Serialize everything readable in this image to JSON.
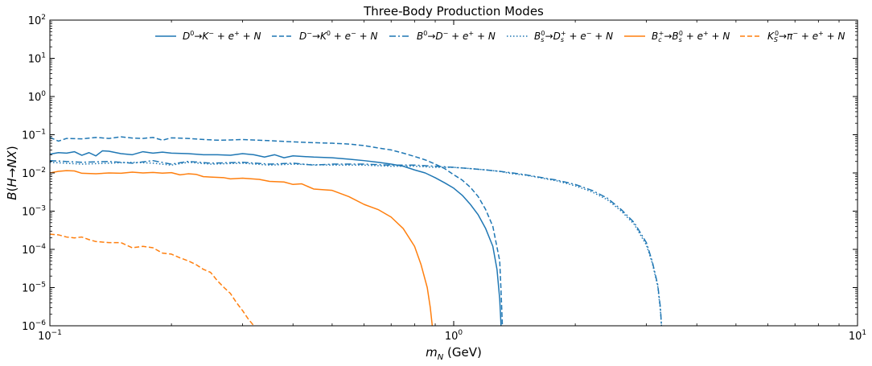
{
  "chart_data": {
    "type": "line",
    "title": "Three-Body Production Modes",
    "xlabel": "m_N (GeV)",
    "ylabel": "B(H→NX)",
    "xscale": "log",
    "yscale": "log",
    "xlim": [
      0.1,
      10
    ],
    "ylim": [
      1e-06,
      100
    ],
    "x_ticks": [
      {
        "value": 0.1,
        "mantissa": "10",
        "exp": "−1"
      },
      {
        "value": 1,
        "mantissa": "10",
        "exp": "0"
      },
      {
        "value": 10,
        "mantissa": "10",
        "exp": "1"
      }
    ],
    "y_ticks": [
      {
        "value": 1e-06,
        "mantissa": "10",
        "exp": "−6"
      },
      {
        "value": 1e-05,
        "mantissa": "10",
        "exp": "−5"
      },
      {
        "value": 0.0001,
        "mantissa": "10",
        "exp": "−4"
      },
      {
        "value": 0.001,
        "mantissa": "10",
        "exp": "−3"
      },
      {
        "value": 0.01,
        "mantissa": "10",
        "exp": "−2"
      },
      {
        "value": 0.1,
        "mantissa": "10",
        "exp": "−1"
      },
      {
        "value": 1,
        "mantissa": "10",
        "exp": "0"
      },
      {
        "value": 10,
        "mantissa": "10",
        "exp": "1"
      },
      {
        "value": 100,
        "mantissa": "10",
        "exp": "2"
      }
    ],
    "grid": false,
    "legend_position": "top-right",
    "series": [
      {
        "name": "D⁰→K⁻ + e⁺ + N",
        "color": "#1f77b4",
        "dash": "solid",
        "points": [
          [
            0.1,
            0.031
          ],
          [
            0.105,
            0.034
          ],
          [
            0.11,
            0.033
          ],
          [
            0.115,
            0.036
          ],
          [
            0.12,
            0.029
          ],
          [
            0.125,
            0.034
          ],
          [
            0.13,
            0.028
          ],
          [
            0.135,
            0.038
          ],
          [
            0.14,
            0.037
          ],
          [
            0.15,
            0.032
          ],
          [
            0.16,
            0.03
          ],
          [
            0.17,
            0.036
          ],
          [
            0.18,
            0.033
          ],
          [
            0.19,
            0.035
          ],
          [
            0.2,
            0.033
          ],
          [
            0.22,
            0.032
          ],
          [
            0.24,
            0.03
          ],
          [
            0.26,
            0.03
          ],
          [
            0.28,
            0.029
          ],
          [
            0.3,
            0.032
          ],
          [
            0.32,
            0.03
          ],
          [
            0.34,
            0.026
          ],
          [
            0.36,
            0.03
          ],
          [
            0.38,
            0.025
          ],
          [
            0.4,
            0.028
          ],
          [
            0.45,
            0.026
          ],
          [
            0.5,
            0.025
          ],
          [
            0.55,
            0.023
          ],
          [
            0.6,
            0.021
          ],
          [
            0.65,
            0.019
          ],
          [
            0.7,
            0.017
          ],
          [
            0.75,
            0.015
          ],
          [
            0.8,
            0.012
          ],
          [
            0.85,
            0.01
          ],
          [
            0.9,
            0.0075
          ],
          [
            0.95,
            0.0055
          ],
          [
            1.0,
            0.004
          ],
          [
            1.05,
            0.0026
          ],
          [
            1.1,
            0.0015
          ],
          [
            1.15,
            0.0008
          ],
          [
            1.2,
            0.00035
          ],
          [
            1.25,
            0.00012
          ],
          [
            1.28,
            3e-05
          ],
          [
            1.3,
            5e-06
          ],
          [
            1.31,
            1e-06
          ]
        ]
      },
      {
        "name": "D⁻→K⁰ + e⁻ + N",
        "color": "#1f77b4",
        "dash": "dashed",
        "points": [
          [
            0.1,
            0.085
          ],
          [
            0.105,
            0.068
          ],
          [
            0.11,
            0.08
          ],
          [
            0.12,
            0.078
          ],
          [
            0.13,
            0.085
          ],
          [
            0.14,
            0.08
          ],
          [
            0.15,
            0.088
          ],
          [
            0.16,
            0.082
          ],
          [
            0.17,
            0.08
          ],
          [
            0.18,
            0.085
          ],
          [
            0.19,
            0.072
          ],
          [
            0.2,
            0.083
          ],
          [
            0.22,
            0.08
          ],
          [
            0.24,
            0.075
          ],
          [
            0.26,
            0.072
          ],
          [
            0.28,
            0.073
          ],
          [
            0.3,
            0.075
          ],
          [
            0.35,
            0.07
          ],
          [
            0.4,
            0.065
          ],
          [
            0.45,
            0.062
          ],
          [
            0.5,
            0.06
          ],
          [
            0.55,
            0.057
          ],
          [
            0.6,
            0.052
          ],
          [
            0.65,
            0.045
          ],
          [
            0.7,
            0.04
          ],
          [
            0.75,
            0.033
          ],
          [
            0.8,
            0.027
          ],
          [
            0.85,
            0.022
          ],
          [
            0.9,
            0.017
          ],
          [
            0.95,
            0.013
          ],
          [
            1.0,
            0.009
          ],
          [
            1.05,
            0.0065
          ],
          [
            1.1,
            0.0042
          ],
          [
            1.15,
            0.0024
          ],
          [
            1.2,
            0.0011
          ],
          [
            1.25,
            0.0004
          ],
          [
            1.3,
            5e-05
          ],
          [
            1.31,
            8e-06
          ],
          [
            1.32,
            1e-06
          ]
        ]
      },
      {
        "name": "B⁰→D⁻ + e⁺ + N",
        "color": "#1f77b4",
        "dash": "dashdot",
        "points": [
          [
            0.1,
            0.021
          ],
          [
            0.12,
            0.019
          ],
          [
            0.14,
            0.02
          ],
          [
            0.16,
            0.018
          ],
          [
            0.18,
            0.021
          ],
          [
            0.2,
            0.017
          ],
          [
            0.22,
            0.02
          ],
          [
            0.25,
            0.018
          ],
          [
            0.3,
            0.019
          ],
          [
            0.35,
            0.017
          ],
          [
            0.4,
            0.018
          ],
          [
            0.45,
            0.016
          ],
          [
            0.5,
            0.017
          ],
          [
            0.6,
            0.017
          ],
          [
            0.7,
            0.016
          ],
          [
            0.8,
            0.016
          ],
          [
            0.9,
            0.015
          ],
          [
            1.0,
            0.014
          ],
          [
            1.1,
            0.013
          ],
          [
            1.2,
            0.012
          ],
          [
            1.3,
            0.011
          ],
          [
            1.4,
            0.01
          ],
          [
            1.5,
            0.009
          ],
          [
            1.6,
            0.008
          ],
          [
            1.8,
            0.0065
          ],
          [
            2.0,
            0.005
          ],
          [
            2.2,
            0.0035
          ],
          [
            2.4,
            0.0022
          ],
          [
            2.6,
            0.0011
          ],
          [
            2.8,
            0.0005
          ],
          [
            3.0,
            0.00015
          ],
          [
            3.1,
            5e-05
          ],
          [
            3.2,
            1.2e-05
          ],
          [
            3.25,
            3e-06
          ],
          [
            3.27,
            1e-06
          ]
        ]
      },
      {
        "name": "B_s⁰→D_s⁺ + e⁻ + N",
        "color": "#1f77b4",
        "dash": "dotted",
        "points": [
          [
            0.1,
            0.019
          ],
          [
            0.12,
            0.017
          ],
          [
            0.14,
            0.018
          ],
          [
            0.16,
            0.019
          ],
          [
            0.18,
            0.018
          ],
          [
            0.2,
            0.016
          ],
          [
            0.22,
            0.019
          ],
          [
            0.25,
            0.017
          ],
          [
            0.3,
            0.018
          ],
          [
            0.35,
            0.016
          ],
          [
            0.4,
            0.017
          ],
          [
            0.5,
            0.016
          ],
          [
            0.6,
            0.016
          ],
          [
            0.7,
            0.015
          ],
          [
            0.8,
            0.015
          ],
          [
            0.9,
            0.014
          ],
          [
            1.0,
            0.014
          ],
          [
            1.1,
            0.013
          ],
          [
            1.2,
            0.012
          ],
          [
            1.3,
            0.011
          ],
          [
            1.4,
            0.0095
          ],
          [
            1.5,
            0.0088
          ],
          [
            1.6,
            0.0078
          ],
          [
            1.8,
            0.0062
          ],
          [
            2.0,
            0.0046
          ],
          [
            2.2,
            0.0032
          ],
          [
            2.4,
            0.002
          ],
          [
            2.6,
            0.001
          ],
          [
            2.8,
            0.00045
          ],
          [
            3.0,
            0.00013
          ],
          [
            3.1,
            4.5e-05
          ],
          [
            3.2,
            1.1e-05
          ],
          [
            3.25,
            2.5e-06
          ],
          [
            3.27,
            1e-06
          ]
        ]
      },
      {
        "name": "B_c⁺→B_s⁰ + e⁺ + N",
        "color": "#ff7f0e",
        "dash": "solid",
        "points": [
          [
            0.1,
            0.01
          ],
          [
            0.105,
            0.011
          ],
          [
            0.11,
            0.0115
          ],
          [
            0.115,
            0.0113
          ],
          [
            0.12,
            0.0098
          ],
          [
            0.13,
            0.0095
          ],
          [
            0.14,
            0.01
          ],
          [
            0.15,
            0.0098
          ],
          [
            0.16,
            0.0105
          ],
          [
            0.17,
            0.01
          ],
          [
            0.18,
            0.0103
          ],
          [
            0.19,
            0.0099
          ],
          [
            0.2,
            0.0102
          ],
          [
            0.21,
            0.0089
          ],
          [
            0.22,
            0.0095
          ],
          [
            0.23,
            0.0092
          ],
          [
            0.24,
            0.008
          ],
          [
            0.25,
            0.0078
          ],
          [
            0.27,
            0.0075
          ],
          [
            0.28,
            0.007
          ],
          [
            0.3,
            0.0073
          ],
          [
            0.33,
            0.0068
          ],
          [
            0.35,
            0.006
          ],
          [
            0.38,
            0.0058
          ],
          [
            0.4,
            0.005
          ],
          [
            0.42,
            0.0052
          ],
          [
            0.45,
            0.0038
          ],
          [
            0.5,
            0.0035
          ],
          [
            0.55,
            0.0024
          ],
          [
            0.6,
            0.0015
          ],
          [
            0.65,
            0.0011
          ],
          [
            0.7,
            0.0007
          ],
          [
            0.75,
            0.00035
          ],
          [
            0.8,
            0.00012
          ],
          [
            0.83,
            4e-05
          ],
          [
            0.86,
            1e-05
          ],
          [
            0.875,
            3e-06
          ],
          [
            0.885,
            1e-06
          ]
        ]
      },
      {
        "name": "K_S⁰→π⁻ + e⁺ + N",
        "color": "#ff7f0e",
        "dash": "dashed",
        "points": [
          [
            0.1,
            0.00025
          ],
          [
            0.105,
            0.00024
          ],
          [
            0.11,
            0.00021
          ],
          [
            0.115,
            0.0002
          ],
          [
            0.12,
            0.00021
          ],
          [
            0.125,
            0.00018
          ],
          [
            0.13,
            0.00016
          ],
          [
            0.14,
            0.00015
          ],
          [
            0.15,
            0.00015
          ],
          [
            0.16,
            0.00011
          ],
          [
            0.17,
            0.00012
          ],
          [
            0.18,
            0.00011
          ],
          [
            0.19,
            8e-05
          ],
          [
            0.2,
            7.5e-05
          ],
          [
            0.21,
            6e-05
          ],
          [
            0.22,
            5e-05
          ],
          [
            0.23,
            4e-05
          ],
          [
            0.24,
            3e-05
          ],
          [
            0.25,
            2.5e-05
          ],
          [
            0.26,
            1.5e-05
          ],
          [
            0.27,
            1e-05
          ],
          [
            0.28,
            7e-06
          ],
          [
            0.29,
            4e-06
          ],
          [
            0.3,
            2.5e-06
          ],
          [
            0.31,
            1.5e-06
          ],
          [
            0.32,
            1e-06
          ]
        ]
      }
    ]
  }
}
